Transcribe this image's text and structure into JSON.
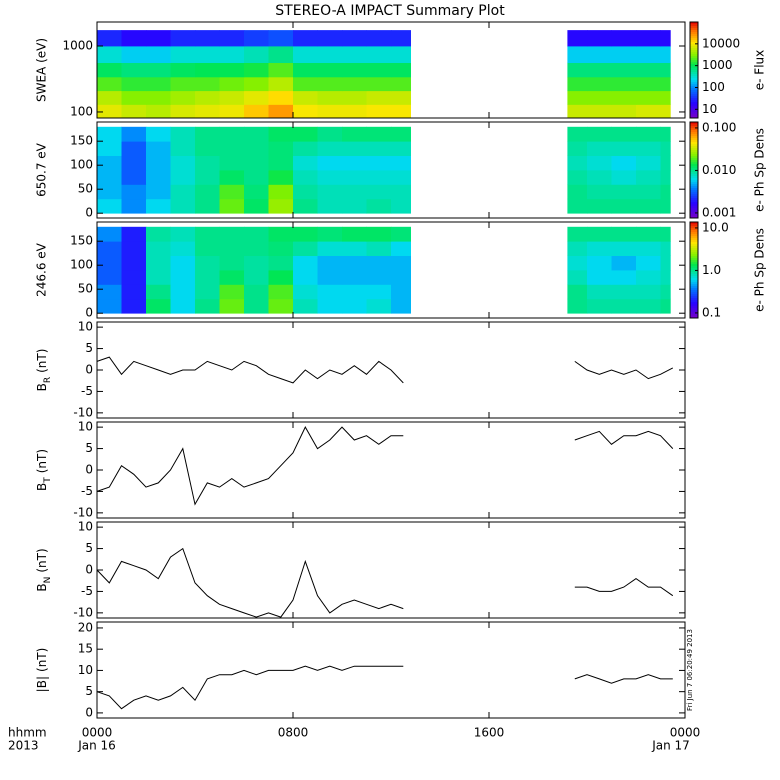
{
  "title": "STEREO-A IMPACT Summary Plot",
  "timestamp": "Fri Jun  7 06:20:49 2013",
  "time_labels": [
    "hhmm",
    "2013"
  ],
  "xtick_dates": [
    "Jan 16",
    "Jan 17"
  ],
  "chart_data": [
    {
      "type": "heatmap",
      "ylabel": "SWEA (eV)",
      "ylog": true,
      "ylim": [
        81,
        2310
      ],
      "yticks": [
        100,
        1000
      ],
      "xlim": [
        0,
        24
      ],
      "xticks": [
        {
          "value": 0,
          "label": "0000"
        },
        {
          "value": 8,
          "label": "0800"
        },
        {
          "value": 16,
          "label": "1600"
        },
        {
          "value": 24,
          "label": "0000"
        }
      ],
      "xbins": [
        0,
        1,
        2,
        3,
        4,
        5,
        6,
        7,
        8,
        9,
        10,
        11,
        12,
        12.8,
        19.2,
        20,
        21,
        22,
        23,
        23.4
      ],
      "ybins": [
        81,
        130,
        210,
        340,
        560,
        1000,
        1740
      ],
      "z": [
        [
          8000,
          6000,
          5000,
          7000,
          8000,
          9000,
          15000,
          25000,
          10000,
          9000,
          9000,
          10000,
          10000,
          null,
          6000,
          6000,
          6000,
          7000,
          7000
        ],
        [
          5000,
          3000,
          3000,
          4000,
          5000,
          6000,
          8000,
          12000,
          6000,
          5000,
          5000,
          6000,
          6000,
          null,
          3000,
          3000,
          3000,
          3000,
          3000
        ],
        [
          2000,
          1500,
          1500,
          2000,
          2000,
          2500,
          3000,
          5000,
          2000,
          2000,
          2000,
          2000,
          2000,
          null,
          1500,
          1500,
          1500,
          1500,
          1500
        ],
        [
          900,
          700,
          700,
          900,
          1000,
          1000,
          1200,
          2000,
          900,
          900,
          900,
          900,
          900,
          null,
          700,
          700,
          700,
          700,
          700
        ],
        [
          300,
          200,
          200,
          300,
          300,
          300,
          400,
          600,
          300,
          300,
          300,
          300,
          300,
          null,
          200,
          200,
          200,
          200,
          200
        ],
        [
          30,
          20,
          20,
          30,
          30,
          30,
          40,
          50,
          30,
          30,
          30,
          30,
          30,
          null,
          20,
          20,
          20,
          20,
          20
        ]
      ],
      "clim": [
        4,
        100000
      ],
      "cticks": [
        10,
        100,
        1000,
        10000
      ],
      "clabel": "e- Flux",
      "colormap": "rainbow"
    },
    {
      "type": "heatmap",
      "ylabel": "650.7 eV",
      "ylog": false,
      "ylim": [
        -10,
        190
      ],
      "yticks": [
        0,
        50,
        100,
        150
      ],
      "xlim": [
        0,
        24
      ],
      "xticks": [
        {
          "value": 0,
          "label": "0000"
        },
        {
          "value": 8,
          "label": "0800"
        },
        {
          "value": 16,
          "label": "1600"
        },
        {
          "value": 24,
          "label": "0000"
        }
      ],
      "xbins": [
        0,
        1,
        2,
        3,
        4,
        5,
        6,
        7,
        8,
        9,
        10,
        11,
        12,
        12.8,
        19.2,
        20,
        21,
        22,
        23,
        23.4
      ],
      "ybins": [
        0,
        30,
        60,
        90,
        120,
        150,
        180
      ],
      "z": [
        [
          0.006,
          0.004,
          0.006,
          0.008,
          0.01,
          0.02,
          0.012,
          0.025,
          0.01,
          0.008,
          0.008,
          0.009,
          0.008,
          null,
          0.01,
          0.01,
          0.01,
          0.01,
          0.01
        ],
        [
          0.005,
          0.004,
          0.005,
          0.008,
          0.01,
          0.018,
          0.011,
          0.022,
          0.009,
          0.008,
          0.008,
          0.008,
          0.008,
          null,
          0.01,
          0.009,
          0.009,
          0.009,
          0.01
        ],
        [
          0.005,
          0.003,
          0.005,
          0.007,
          0.009,
          0.012,
          0.01,
          0.014,
          0.008,
          0.007,
          0.007,
          0.007,
          0.007,
          null,
          0.009,
          0.008,
          0.007,
          0.008,
          0.009
        ],
        [
          0.005,
          0.003,
          0.005,
          0.007,
          0.009,
          0.01,
          0.01,
          0.011,
          0.007,
          0.006,
          0.006,
          0.006,
          0.006,
          null,
          0.008,
          0.007,
          0.006,
          0.007,
          0.009
        ],
        [
          0.006,
          0.003,
          0.005,
          0.008,
          0.01,
          0.01,
          0.01,
          0.011,
          0.009,
          0.008,
          0.008,
          0.008,
          0.008,
          null,
          0.009,
          0.008,
          0.008,
          0.008,
          0.009
        ],
        [
          0.006,
          0.004,
          0.006,
          0.008,
          0.01,
          0.01,
          0.01,
          0.012,
          0.012,
          0.01,
          0.011,
          0.011,
          0.011,
          null,
          0.01,
          0.01,
          0.01,
          0.01,
          0.01
        ]
      ],
      "clim": [
        0.00076,
        0.138
      ],
      "cticks": [
        {
          "value": 0.1,
          "label": "0.100"
        },
        {
          "value": 0.01,
          "label": "0.010"
        },
        {
          "value": 0.001,
          "label": "0.001"
        }
      ],
      "clabel": "e- Ph Sp Dens",
      "colormap": "rainbow"
    },
    {
      "type": "heatmap",
      "ylabel": "246.6 eV",
      "ylog": false,
      "ylim": [
        -10,
        190
      ],
      "yticks": [
        0,
        50,
        100,
        150
      ],
      "xlim": [
        0,
        24
      ],
      "xticks": [
        {
          "value": 0,
          "label": "0000"
        },
        {
          "value": 8,
          "label": "0800"
        },
        {
          "value": 16,
          "label": "1600"
        },
        {
          "value": 24,
          "label": "0000"
        }
      ],
      "xbins": [
        0,
        1,
        2,
        3,
        4,
        5,
        6,
        7,
        8,
        9,
        10,
        11,
        12,
        12.8,
        19.2,
        20,
        21,
        22,
        23,
        23.4
      ],
      "ybins": [
        0,
        30,
        60,
        90,
        120,
        150,
        180
      ],
      "z": [
        [
          0.4,
          0.2,
          1.2,
          0.6,
          1.0,
          2.0,
          1.0,
          2.0,
          0.8,
          0.6,
          0.6,
          0.7,
          0.5,
          null,
          1.0,
          0.9,
          0.9,
          0.9,
          1.0
        ],
        [
          0.4,
          0.2,
          1.0,
          0.6,
          0.9,
          1.8,
          1.0,
          1.8,
          0.7,
          0.6,
          0.6,
          0.6,
          0.5,
          null,
          1.0,
          0.8,
          0.8,
          0.8,
          0.9
        ],
        [
          0.3,
          0.2,
          0.8,
          0.6,
          0.9,
          1.2,
          0.9,
          1.3,
          0.6,
          0.5,
          0.5,
          0.5,
          0.5,
          null,
          0.8,
          0.6,
          0.6,
          0.7,
          0.8
        ],
        [
          0.3,
          0.2,
          0.8,
          0.6,
          0.9,
          1.0,
          0.9,
          1.0,
          0.6,
          0.5,
          0.5,
          0.5,
          0.5,
          null,
          0.7,
          0.6,
          0.5,
          0.6,
          0.8
        ],
        [
          0.3,
          0.2,
          0.8,
          0.7,
          1.0,
          1.0,
          1.0,
          1.1,
          0.9,
          0.7,
          0.7,
          0.8,
          0.6,
          null,
          0.8,
          0.7,
          0.7,
          0.7,
          0.8
        ],
        [
          0.4,
          0.2,
          0.9,
          0.8,
          1.0,
          1.0,
          1.0,
          1.2,
          1.2,
          1.1,
          1.2,
          1.2,
          1.1,
          null,
          1.0,
          1.0,
          1.0,
          1.0,
          1.0
        ]
      ],
      "clim": [
        0.076,
        13.8
      ],
      "cticks": [
        {
          "value": 10,
          "label": "10.0"
        },
        {
          "value": 1,
          "label": "1.0"
        },
        {
          "value": 0.1,
          "label": "0.1"
        }
      ],
      "clabel": "e- Ph Sp Dens",
      "colormap": "rainbow"
    },
    {
      "type": "line",
      "ylabel": [
        "B",
        "R",
        "(nT)"
      ],
      "ylim": [
        -11.2,
        11.2
      ],
      "yticks": [
        -10,
        -5,
        0,
        5,
        10
      ],
      "color": "#000000",
      "xlim": [
        0,
        24
      ],
      "xticks": [
        {
          "value": 0,
          "label": "0000"
        },
        {
          "value": 8,
          "label": "0800"
        },
        {
          "value": 16,
          "label": "1600"
        },
        {
          "value": 24,
          "label": "0000"
        }
      ],
      "x": [
        0,
        0.5,
        1,
        1.5,
        2,
        2.5,
        3,
        3.5,
        4,
        4.5,
        5,
        5.5,
        6,
        6.5,
        7,
        7.5,
        8,
        8.5,
        9,
        9.5,
        10,
        10.5,
        11,
        11.5,
        12,
        12.5,
        16,
        19.5,
        20,
        20.5,
        21,
        21.5,
        22,
        22.5,
        23,
        23.5
      ],
      "values": [
        2,
        3,
        -1,
        2,
        1,
        0,
        -1,
        0,
        0,
        2,
        1,
        0,
        2,
        1,
        -1,
        -2,
        -3,
        0,
        -2,
        0,
        -1,
        1,
        -1,
        2,
        0,
        -3,
        null,
        2,
        0,
        -1,
        0,
        -1,
        0,
        -2,
        -1,
        0.5
      ]
    },
    {
      "type": "line",
      "ylabel": [
        "B",
        "T",
        "(nT)"
      ],
      "ylim": [
        -11.2,
        11.2
      ],
      "yticks": [
        -10,
        -5,
        0,
        5,
        10
      ],
      "color": "#000000",
      "xlim": [
        0,
        24
      ],
      "xticks": [
        {
          "value": 0,
          "label": "0000"
        },
        {
          "value": 8,
          "label": "0800"
        },
        {
          "value": 16,
          "label": "1600"
        },
        {
          "value": 24,
          "label": "0000"
        }
      ],
      "x": [
        0,
        0.5,
        1,
        1.5,
        2,
        2.5,
        3,
        3.5,
        4,
        4.5,
        5,
        5.5,
        6,
        6.5,
        7,
        7.5,
        8,
        8.5,
        9,
        9.5,
        10,
        10.5,
        11,
        11.5,
        12,
        12.5,
        16,
        19.5,
        20,
        20.5,
        21,
        21.5,
        22,
        22.5,
        23,
        23.5
      ],
      "values": [
        -5,
        -4,
        1,
        -1,
        -4,
        -3,
        0,
        5,
        -8,
        -3,
        -4,
        -2,
        -4,
        -3,
        -2,
        1,
        4,
        10,
        5,
        7,
        10,
        7,
        8,
        6,
        8,
        8,
        null,
        7,
        8,
        9,
        6,
        8,
        8,
        9,
        8,
        5
      ]
    },
    {
      "type": "line",
      "ylabel": [
        "B",
        "N",
        "(nT)"
      ],
      "ylim": [
        -11.2,
        11.2
      ],
      "yticks": [
        -10,
        -5,
        0,
        5,
        10
      ],
      "color": "#000000",
      "xlim": [
        0,
        24
      ],
      "xticks": [
        {
          "value": 0,
          "label": "0000"
        },
        {
          "value": 8,
          "label": "0800"
        },
        {
          "value": 16,
          "label": "1600"
        },
        {
          "value": 24,
          "label": "0000"
        }
      ],
      "x": [
        0,
        0.5,
        1,
        1.5,
        2,
        2.5,
        3,
        3.5,
        4,
        4.5,
        5,
        5.5,
        6,
        6.5,
        7,
        7.5,
        8,
        8.5,
        9,
        9.5,
        10,
        10.5,
        11,
        11.5,
        12,
        12.5,
        16,
        19.5,
        20,
        20.5,
        21,
        21.5,
        22,
        22.5,
        23,
        23.5
      ],
      "values": [
        0,
        -3,
        2,
        1,
        0,
        -2,
        3,
        5,
        -3,
        -6,
        -8,
        -9,
        -10,
        -11,
        -10,
        -11,
        -7,
        2,
        -6,
        -10,
        -8,
        -7,
        -8,
        -9,
        -8,
        -9,
        null,
        -4,
        -4,
        -5,
        -5,
        -4,
        -2,
        -4,
        -4,
        -6
      ]
    },
    {
      "type": "line",
      "ylabel": [
        "|B|",
        "",
        "(nT)"
      ],
      "ylim": [
        -1.2,
        21.4
      ],
      "yticks": [
        0,
        5,
        10,
        15,
        20
      ],
      "color": "#000000",
      "xlim": [
        0,
        24
      ],
      "xticks": [
        {
          "value": 0,
          "label": "0000"
        },
        {
          "value": 8,
          "label": "0800"
        },
        {
          "value": 16,
          "label": "1600"
        },
        {
          "value": 24,
          "label": "0000"
        }
      ],
      "x": [
        0,
        0.5,
        1,
        1.5,
        2,
        2.5,
        3,
        3.5,
        4,
        4.5,
        5,
        5.5,
        6,
        6.5,
        7,
        7.5,
        8,
        8.5,
        9,
        9.5,
        10,
        10.5,
        11,
        11.5,
        12,
        12.5,
        16,
        19.5,
        20,
        20.5,
        21,
        21.5,
        22,
        22.5,
        23,
        23.5
      ],
      "values": [
        5,
        4,
        1,
        3,
        4,
        3,
        4,
        6,
        3,
        8,
        9,
        9,
        10,
        9,
        10,
        10,
        10,
        11,
        10,
        11,
        10,
        11,
        11,
        11,
        11,
        11,
        null,
        8,
        9,
        8,
        7,
        8,
        8,
        9,
        8,
        8
      ]
    }
  ]
}
